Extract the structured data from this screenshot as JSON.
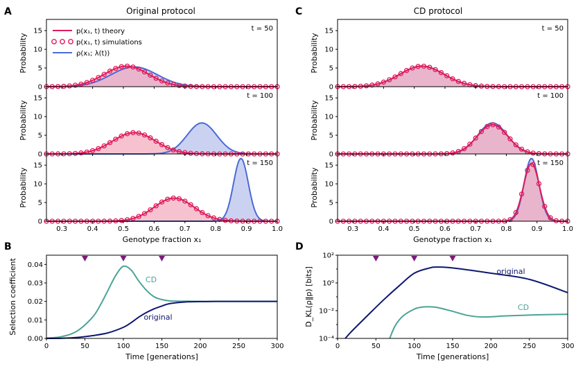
{
  "panel_labels": {
    "A": "A",
    "B": "B",
    "C": "C",
    "D": "D"
  },
  "colors": {
    "theory": "#e0195a",
    "theory_fill": "#f3a8bc",
    "sim": "#e0195a",
    "target": "#4a6ad6",
    "target_fill": "#b9c3ec",
    "original": "#0d1770",
    "cd": "#4aa396",
    "marker": "#7a1a7a"
  },
  "chart_data": [
    {
      "id": "A",
      "type": "area",
      "title": "Original protocol",
      "xlabel": "Genotype fraction x₁",
      "ylabel": "Probability",
      "xlim": [
        0.25,
        1.0
      ],
      "ylim": [
        0,
        18
      ],
      "xticks": [
        "0.3",
        "0.4",
        "0.5",
        "0.6",
        "0.7",
        "0.8",
        "0.9",
        "1.0"
      ],
      "yticks": [
        "0",
        "5",
        "10",
        "15"
      ],
      "legend": {
        "theory": "p(x₁, t) theory",
        "sim": "p(x₁, t) simulations",
        "target": "ρ(x₁; λ(t))"
      },
      "rows": [
        {
          "t_label": "t = 50",
          "theory": {
            "mean": 0.51,
            "sd": 0.072,
            "peak": 5.5
          },
          "target": {
            "mean": 0.535,
            "sd": 0.075,
            "peak": 5.3
          }
        },
        {
          "t_label": "t = 100",
          "theory": {
            "mean": 0.535,
            "sd": 0.07,
            "peak": 5.7
          },
          "target": {
            "mean": 0.755,
            "sd": 0.048,
            "peak": 8.3
          }
        },
        {
          "t_label": "t = 150",
          "theory": {
            "mean": 0.665,
            "sd": 0.065,
            "peak": 6.2
          },
          "target": {
            "mean": 0.882,
            "sd": 0.024,
            "peak": 16.8
          }
        }
      ]
    },
    {
      "id": "C",
      "type": "area",
      "title": "CD protocol",
      "xlabel": "Genotype fraction x₁",
      "ylabel": "Probability",
      "xlim": [
        0.25,
        1.0
      ],
      "ylim": [
        0,
        18
      ],
      "xticks": [
        "0.3",
        "0.4",
        "0.5",
        "0.6",
        "0.7",
        "0.8",
        "0.9",
        "1.0"
      ],
      "yticks": [
        "0",
        "5",
        "10",
        "15"
      ],
      "rows": [
        {
          "t_label": "t = 50",
          "theory": {
            "mean": 0.525,
            "sd": 0.072,
            "peak": 5.5
          },
          "target": {
            "mean": 0.525,
            "sd": 0.072,
            "peak": 5.5
          }
        },
        {
          "t_label": "t = 100",
          "theory": {
            "mean": 0.755,
            "sd": 0.05,
            "peak": 7.8
          },
          "target": {
            "mean": 0.755,
            "sd": 0.048,
            "peak": 8.3
          }
        },
        {
          "t_label": "t = 150",
          "theory": {
            "mean": 0.882,
            "sd": 0.026,
            "peak": 15.5
          },
          "target": {
            "mean": 0.882,
            "sd": 0.024,
            "peak": 16.8
          }
        }
      ]
    },
    {
      "id": "B",
      "type": "line",
      "xlabel": "Time [generations]",
      "ylabel": "Selection coefficient",
      "xlim": [
        0,
        300
      ],
      "ylim": [
        0,
        0.045
      ],
      "xticks": [
        "0",
        "50",
        "100",
        "150",
        "200",
        "250",
        "300"
      ],
      "yticks": [
        "0.00",
        "0.01",
        "0.02",
        "0.03",
        "0.04"
      ],
      "markers_t": [
        50,
        100,
        150
      ],
      "series": [
        {
          "name": "CD",
          "x": [
            0,
            20,
            40,
            60,
            70,
            80,
            90,
            100,
            110,
            120,
            130,
            140,
            150,
            160,
            180,
            200,
            220,
            250,
            300
          ],
          "y": [
            0.0002,
            0.001,
            0.004,
            0.0115,
            0.018,
            0.026,
            0.034,
            0.039,
            0.037,
            0.031,
            0.026,
            0.0225,
            0.021,
            0.0203,
            0.0201,
            0.02,
            0.02,
            0.02,
            0.02
          ]
        },
        {
          "name": "original",
          "x": [
            0,
            20,
            40,
            60,
            80,
            100,
            110,
            120,
            130,
            140,
            150,
            160,
            180,
            200,
            220,
            250,
            300
          ],
          "y": [
            0,
            0.0001,
            0.0005,
            0.0015,
            0.003,
            0.006,
            0.0085,
            0.0115,
            0.014,
            0.016,
            0.0175,
            0.0188,
            0.0197,
            0.0199,
            0.02,
            0.02,
            0.02
          ]
        }
      ]
    },
    {
      "id": "D",
      "type": "line",
      "xlabel": "Time [generations]",
      "ylabel": "D_KL(ρ‖p) [bits]",
      "yscale": "log",
      "xlim": [
        0,
        300
      ],
      "ylim": [
        0.0001,
        100
      ],
      "xticks": [
        "0",
        "50",
        "100",
        "150",
        "200",
        "250",
        "300"
      ],
      "yticks": [
        "10⁻⁴",
        "10⁻²",
        "10⁰",
        "10²"
      ],
      "markers_t": [
        50,
        100,
        150
      ],
      "series": [
        {
          "name": "original",
          "x": [
            10,
            20,
            40,
            60,
            80,
            100,
            120,
            130,
            150,
            200,
            250,
            300
          ],
          "y": [
            0.0001,
            0.0004,
            0.005,
            0.06,
            0.6,
            5,
            12,
            14,
            12,
            5,
            1.8,
            0.2
          ]
        },
        {
          "name": "CD",
          "x": [
            68,
            75,
            85,
            100,
            110,
            120,
            130,
            150,
            170,
            190,
            220,
            260,
            300
          ],
          "y": [
            0.0001,
            0.0008,
            0.004,
            0.013,
            0.018,
            0.019,
            0.017,
            0.009,
            0.0045,
            0.0035,
            0.0042,
            0.005,
            0.0055
          ]
        }
      ]
    }
  ]
}
